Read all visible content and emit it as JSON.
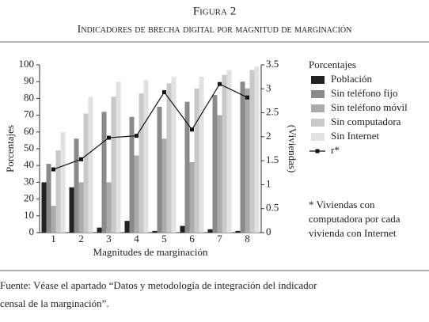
{
  "chart_data": {
    "type": "bar",
    "title": "Figura 2",
    "subtitle": "Indicadores de brecha digital por magnitud de marginación",
    "xlabel": "Magnitudes de marginación",
    "ylabel": "Porcentajes",
    "y2label": "(Viviendas)",
    "legend_title": "Porcentajes",
    "footnote": [
      "* Viviendas con",
      "computadora por cada",
      "vivienda con Internet"
    ],
    "source": [
      "Fuente: Véase el apartado “Datos y metodología de integración del indicador",
      "censal de la marginación”."
    ],
    "categories": [
      "1",
      "2",
      "3",
      "4",
      "5",
      "6",
      "7",
      "8"
    ],
    "ylim": [
      0,
      100
    ],
    "yticks": [
      0,
      10,
      20,
      30,
      40,
      50,
      60,
      70,
      80,
      90,
      100
    ],
    "y2lim": [
      0,
      3.5
    ],
    "y2ticks": [
      0,
      0.5,
      1,
      1.5,
      2,
      2.5,
      3,
      3.5
    ],
    "series": [
      {
        "name": "Población",
        "color": "#222222",
        "values": [
          30,
          27,
          3,
          7,
          1,
          4,
          2,
          1
        ]
      },
      {
        "name": "Sin teléfono fijo",
        "color": "#8a8a8a",
        "values": [
          41,
          56,
          72,
          69,
          75,
          78,
          82,
          90
        ]
      },
      {
        "name": "Sin teléfono móvil",
        "color": "#ababab",
        "values": [
          16,
          30,
          30,
          46,
          56,
          42,
          70,
          86
        ]
      },
      {
        "name": "Sin computadora",
        "color": "#c9c9c9",
        "values": [
          49,
          71,
          81,
          83,
          89,
          86,
          94,
          97
        ]
      },
      {
        "name": "Sin Internet",
        "color": "#e2e2e2",
        "values": [
          60,
          81,
          90,
          91,
          93,
          93,
          97,
          99
        ]
      },
      {
        "name": "r*",
        "color": "#111111",
        "axis": "y2",
        "type": "line",
        "values": [
          1.32,
          1.53,
          1.98,
          2.02,
          2.93,
          2.15,
          3.1,
          2.82
        ]
      }
    ]
  }
}
